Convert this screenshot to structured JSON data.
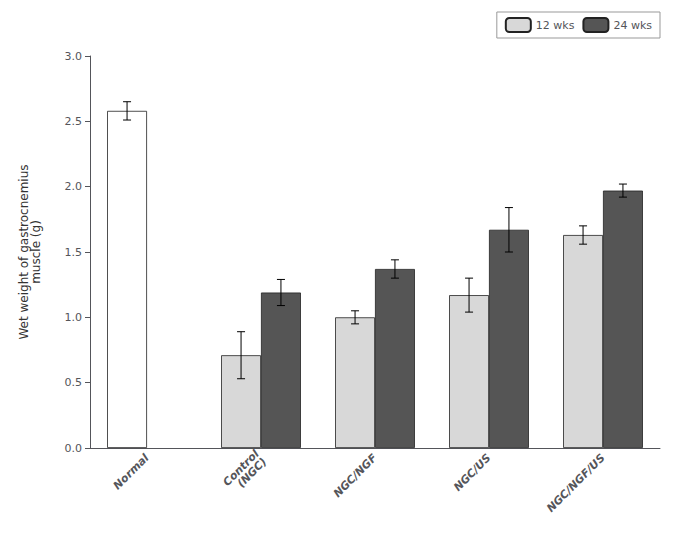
{
  "chart_data": {
    "type": "bar",
    "categories": [
      "Normal",
      "Control\n(NGC)",
      "NGC/NGF",
      "NGC/US",
      "NGC/NGF/US"
    ],
    "series": [
      {
        "name": "12 wks",
        "color": "#d8d8d8",
        "colors": [
          "#ffffff",
          "#d8d8d8",
          "#d8d8d8",
          "#d8d8d8",
          "#d8d8d8"
        ],
        "values": [
          2.58,
          0.71,
          1.0,
          1.17,
          1.63
        ],
        "errors": [
          0.07,
          0.18,
          0.05,
          0.13,
          0.07
        ]
      },
      {
        "name": "24 wks",
        "color": "#555555",
        "values": [
          null,
          1.19,
          1.37,
          1.67,
          1.97
        ],
        "errors": [
          null,
          0.1,
          0.07,
          0.17,
          0.05
        ]
      }
    ],
    "ylabel": "Wet weight of gastrocnemius\nmuscle (g)",
    "ylim": [
      0,
      3.0
    ],
    "yticks": [
      {
        "value": 0,
        "label": "0.0"
      },
      0.5,
      {
        "value": 1,
        "label": "1.0"
      },
      1.5,
      {
        "value": 2,
        "label": "2.0"
      },
      2.5,
      {
        "value": 3,
        "label": "3.0"
      }
    ],
    "grid": false,
    "legend": "upper right"
  }
}
